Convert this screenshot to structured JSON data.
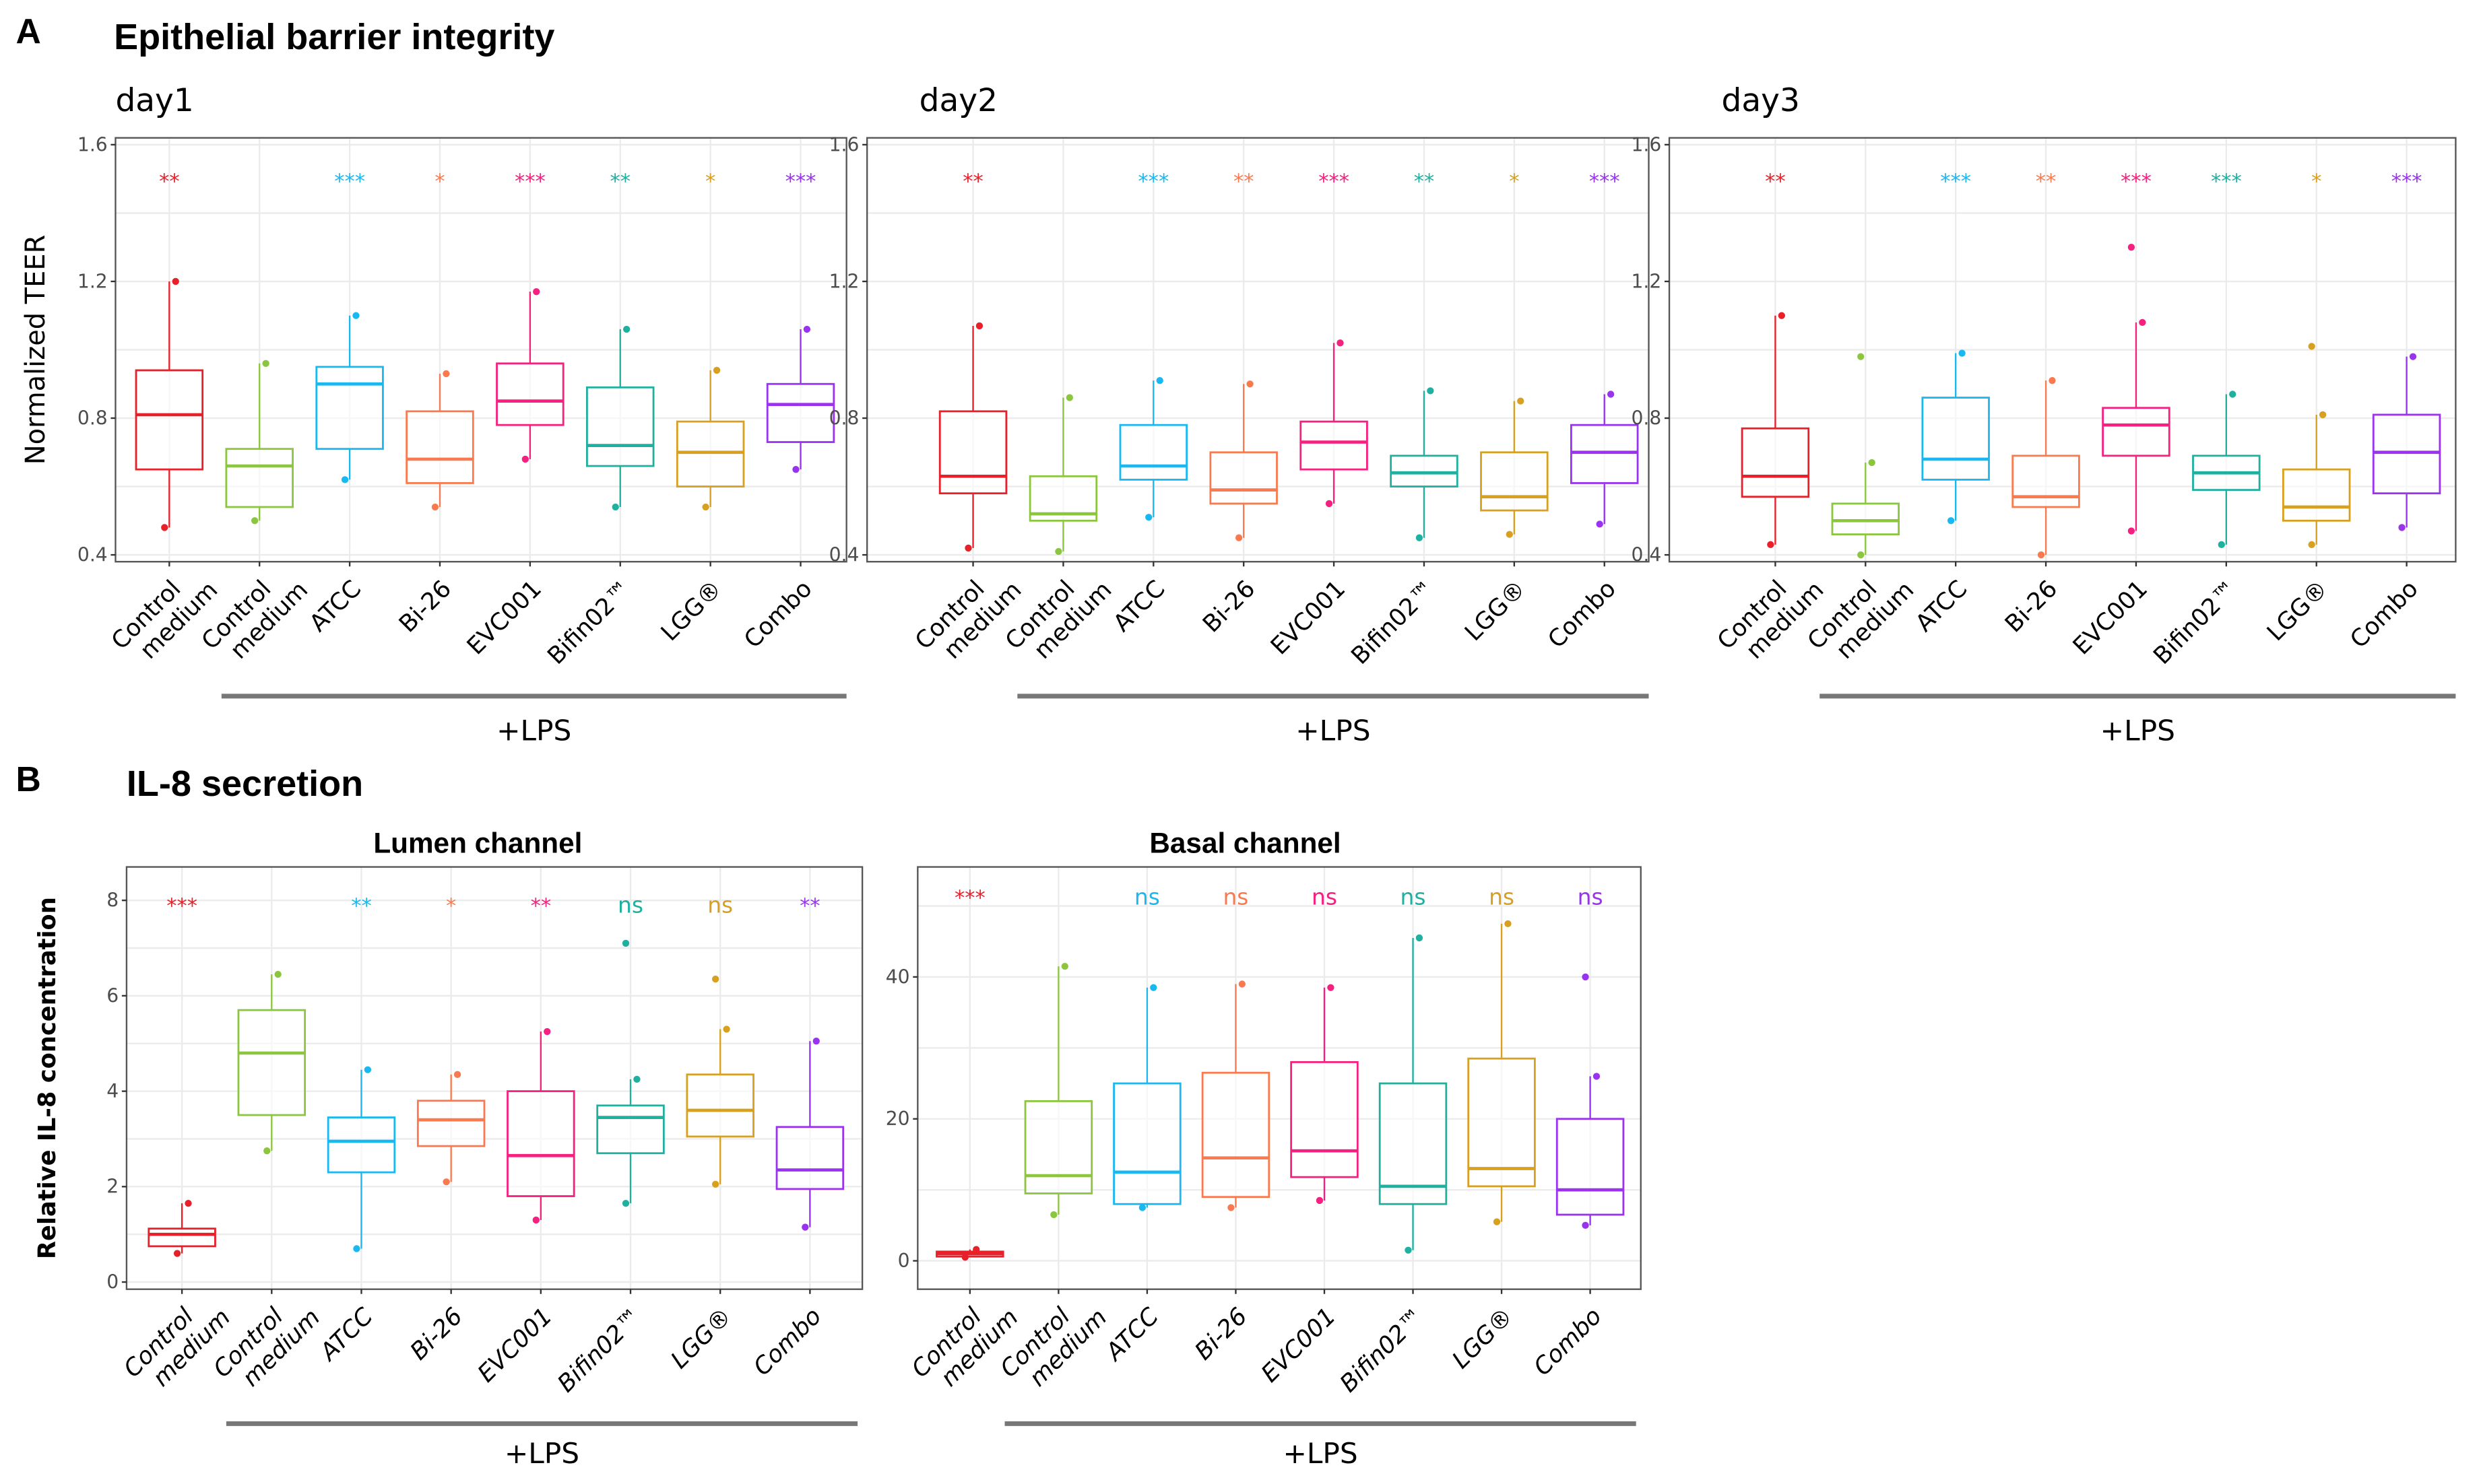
{
  "figure": {
    "panel_a_letter": "A",
    "panel_a_title": "Epithelial barrier integrity",
    "panel_b_letter": "B",
    "panel_b_title": "IL-8 secretion",
    "lps_label": "+LPS"
  },
  "categories": [
    "Control\nmedium",
    "Control\nmedium",
    "ATCC",
    "Bi-26",
    "EVC001",
    "Bifin02™",
    "LGG®",
    "Combo"
  ],
  "colors": [
    "#e8202a",
    "#8cc63f",
    "#1ab8f0",
    "#fa7a50",
    "#f5207f",
    "#20b0a0",
    "#d8a020",
    "#9a33f0"
  ],
  "chart_data": [
    {
      "type": "box",
      "title": "day1",
      "ylabel": "Normalized TEER",
      "yticks": [
        "0.4",
        "0.8",
        "1.2",
        "1.6"
      ],
      "ylim": [
        0.38,
        1.62
      ],
      "grid": true,
      "significance": [
        "**",
        "",
        "***",
        "*",
        "***",
        "**",
        "*",
        "***"
      ],
      "boxes": [
        {
          "q1": 0.65,
          "median": 0.81,
          "q3": 0.94,
          "min": 0.48,
          "max": 1.2
        },
        {
          "q1": 0.54,
          "median": 0.66,
          "q3": 0.71,
          "min": 0.5,
          "max": 0.96
        },
        {
          "q1": 0.71,
          "median": 0.9,
          "q3": 0.95,
          "min": 0.62,
          "max": 1.1
        },
        {
          "q1": 0.61,
          "median": 0.68,
          "q3": 0.82,
          "min": 0.54,
          "max": 0.93
        },
        {
          "q1": 0.78,
          "median": 0.85,
          "q3": 0.96,
          "min": 0.68,
          "max": 1.17
        },
        {
          "q1": 0.66,
          "median": 0.72,
          "q3": 0.89,
          "min": 0.54,
          "max": 1.06
        },
        {
          "q1": 0.6,
          "median": 0.7,
          "q3": 0.79,
          "min": 0.54,
          "max": 0.94
        },
        {
          "q1": 0.73,
          "median": 0.84,
          "q3": 0.9,
          "min": 0.65,
          "max": 1.06
        }
      ]
    },
    {
      "type": "box",
      "title": "day2",
      "ylabel": "",
      "yticks": [
        "0.4",
        "0.8",
        "1.2",
        "1.6"
      ],
      "ylim": [
        0.38,
        1.62
      ],
      "grid": true,
      "significance": [
        "**",
        "",
        "***",
        "**",
        "***",
        "**",
        "*",
        "***"
      ],
      "boxes": [
        {
          "q1": 0.58,
          "median": 0.63,
          "q3": 0.82,
          "min": 0.42,
          "max": 1.07
        },
        {
          "q1": 0.5,
          "median": 0.52,
          "q3": 0.63,
          "min": 0.41,
          "max": 0.86
        },
        {
          "q1": 0.62,
          "median": 0.66,
          "q3": 0.78,
          "min": 0.51,
          "max": 0.91
        },
        {
          "q1": 0.55,
          "median": 0.59,
          "q3": 0.7,
          "min": 0.45,
          "max": 0.9
        },
        {
          "q1": 0.65,
          "median": 0.73,
          "q3": 0.79,
          "min": 0.55,
          "max": 1.02
        },
        {
          "q1": 0.6,
          "median": 0.64,
          "q3": 0.69,
          "min": 0.45,
          "max": 0.88
        },
        {
          "q1": 0.53,
          "median": 0.57,
          "q3": 0.7,
          "min": 0.46,
          "max": 0.85
        },
        {
          "q1": 0.61,
          "median": 0.7,
          "q3": 0.78,
          "min": 0.49,
          "max": 0.87
        }
      ]
    },
    {
      "type": "box",
      "title": "day3",
      "ylabel": "",
      "yticks": [
        "0.4",
        "0.8",
        "1.2",
        "1.6"
      ],
      "ylim": [
        0.38,
        1.62
      ],
      "grid": true,
      "significance": [
        "**",
        "",
        "***",
        "**",
        "***",
        "***",
        "*",
        "***"
      ],
      "boxes": [
        {
          "q1": 0.57,
          "median": 0.63,
          "q3": 0.77,
          "min": 0.43,
          "max": 1.1
        },
        {
          "q1": 0.46,
          "median": 0.5,
          "q3": 0.55,
          "min": 0.4,
          "max": 0.67,
          "outliers": [
            0.98
          ]
        },
        {
          "q1": 0.62,
          "median": 0.68,
          "q3": 0.86,
          "min": 0.5,
          "max": 0.99
        },
        {
          "q1": 0.54,
          "median": 0.57,
          "q3": 0.69,
          "min": 0.4,
          "max": 0.91
        },
        {
          "q1": 0.69,
          "median": 0.78,
          "q3": 0.83,
          "min": 0.47,
          "max": 1.08,
          "outliers": [
            1.3
          ]
        },
        {
          "q1": 0.59,
          "median": 0.64,
          "q3": 0.69,
          "min": 0.43,
          "max": 0.87
        },
        {
          "q1": 0.5,
          "median": 0.54,
          "q3": 0.65,
          "min": 0.43,
          "max": 0.81,
          "outliers": [
            1.01
          ]
        },
        {
          "q1": 0.58,
          "median": 0.7,
          "q3": 0.81,
          "min": 0.48,
          "max": 0.98
        }
      ]
    },
    {
      "type": "box",
      "title": "Lumen channel",
      "ylabel": "Relative IL-8 concentration",
      "yticks": [
        "0",
        "2",
        "4",
        "6",
        "8"
      ],
      "ylim": [
        -0.15,
        8.7
      ],
      "grid": true,
      "significance": [
        "***",
        "",
        "**",
        "*",
        "**",
        "ns",
        "ns",
        "**"
      ],
      "boxes": [
        {
          "q1": 0.75,
          "median": 1.0,
          "q3": 1.12,
          "min": 0.6,
          "max": 1.65
        },
        {
          "q1": 3.5,
          "median": 4.8,
          "q3": 5.7,
          "min": 2.75,
          "max": 6.45
        },
        {
          "q1": 2.3,
          "median": 2.95,
          "q3": 3.45,
          "min": 0.7,
          "max": 4.45
        },
        {
          "q1": 2.85,
          "median": 3.4,
          "q3": 3.8,
          "min": 2.1,
          "max": 4.35
        },
        {
          "q1": 1.8,
          "median": 2.65,
          "q3": 4.0,
          "min": 1.3,
          "max": 5.25
        },
        {
          "q1": 2.7,
          "median": 3.45,
          "q3": 3.7,
          "min": 1.65,
          "max": 4.25,
          "outliers": [
            7.1
          ]
        },
        {
          "q1": 3.05,
          "median": 3.6,
          "q3": 4.35,
          "min": 2.05,
          "max": 5.3,
          "outliers": [
            6.35
          ]
        },
        {
          "q1": 1.95,
          "median": 2.35,
          "q3": 3.25,
          "min": 1.15,
          "max": 5.05
        }
      ]
    },
    {
      "type": "box",
      "title": "Basal channel",
      "ylabel": "",
      "yticks": [
        "0",
        "20",
        "40"
      ],
      "ylim": [
        -4,
        55.5
      ],
      "grid": true,
      "significance": [
        "***",
        "",
        "ns",
        "ns",
        "ns",
        "ns",
        "ns",
        "ns"
      ],
      "boxes": [
        {
          "q1": 0.6,
          "median": 1.0,
          "q3": 1.3,
          "min": 0.5,
          "max": 1.6
        },
        {
          "q1": 9.5,
          "median": 12,
          "q3": 22.5,
          "min": 6.5,
          "max": 41.5
        },
        {
          "q1": 8,
          "median": 12.5,
          "q3": 25,
          "min": 7.5,
          "max": 38.5
        },
        {
          "q1": 9,
          "median": 14.5,
          "q3": 26.5,
          "min": 7.5,
          "max": 39
        },
        {
          "q1": 11.8,
          "median": 15.5,
          "q3": 28,
          "min": 8.5,
          "max": 38.5
        },
        {
          "q1": 8,
          "median": 10.5,
          "q3": 25,
          "min": 1.5,
          "max": 45.5
        },
        {
          "q1": 10.5,
          "median": 13,
          "q3": 28.5,
          "min": 5.5,
          "max": 47.5
        },
        {
          "q1": 6.5,
          "median": 10,
          "q3": 20,
          "min": 5,
          "max": 26,
          "outliers": [
            40
          ]
        }
      ]
    }
  ]
}
